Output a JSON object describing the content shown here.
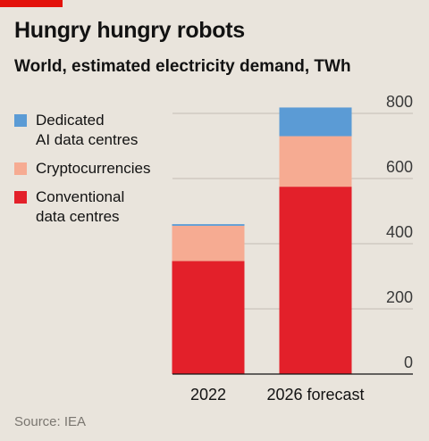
{
  "header": {
    "title": "Hungry hungry robots",
    "subtitle": "World, estimated electricity demand, TWh"
  },
  "legend": [
    {
      "label": "Dedicated\nAI data centres",
      "color": "#5b9bd5"
    },
    {
      "label": "Cryptocurrencies",
      "color": "#f6ab92"
    },
    {
      "label": "Conventional\ndata centres",
      "color": "#e3202a"
    }
  ],
  "source": "Source: IEA",
  "chart_data": {
    "type": "bar",
    "stacked": true,
    "categories": [
      "2022",
      "2026 forecast"
    ],
    "series": [
      {
        "name": "Conventional data centres",
        "values": [
          347,
          575
        ],
        "color": "#e3202a"
      },
      {
        "name": "Cryptocurrencies",
        "values": [
          108,
          155
        ],
        "color": "#f6ab92"
      },
      {
        "name": "Dedicated AI data centres",
        "values": [
          5,
          88
        ],
        "color": "#5b9bd5"
      }
    ],
    "ylim": [
      0,
      800
    ],
    "yticks": [
      0,
      200,
      400,
      600,
      800
    ],
    "axis_side": "right",
    "grid": true
  }
}
